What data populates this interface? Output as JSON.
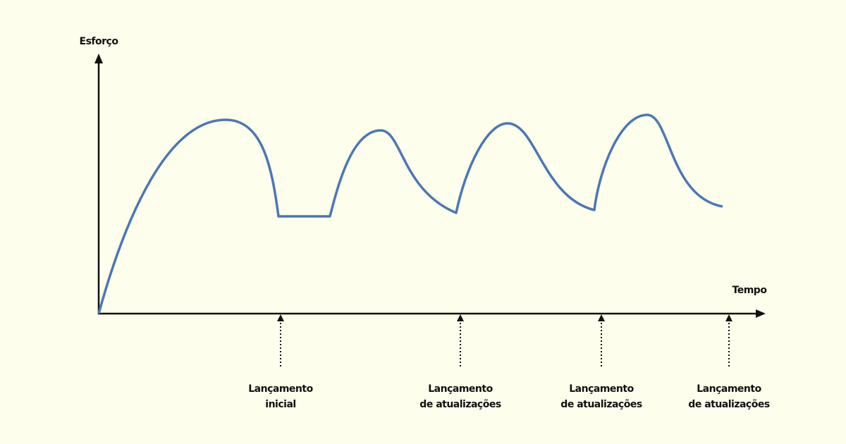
{
  "axes": {
    "y_label": "Esforço",
    "x_label": "Tempo"
  },
  "milestones": [
    {
      "lines": [
        "Lançamento",
        "inicial"
      ]
    },
    {
      "lines": [
        "Lançamento",
        "de atualizações"
      ]
    },
    {
      "lines": [
        "Lançamento",
        "de atualizações"
      ]
    },
    {
      "lines": [
        "Lançamento",
        "de atualizações"
      ]
    }
  ]
}
